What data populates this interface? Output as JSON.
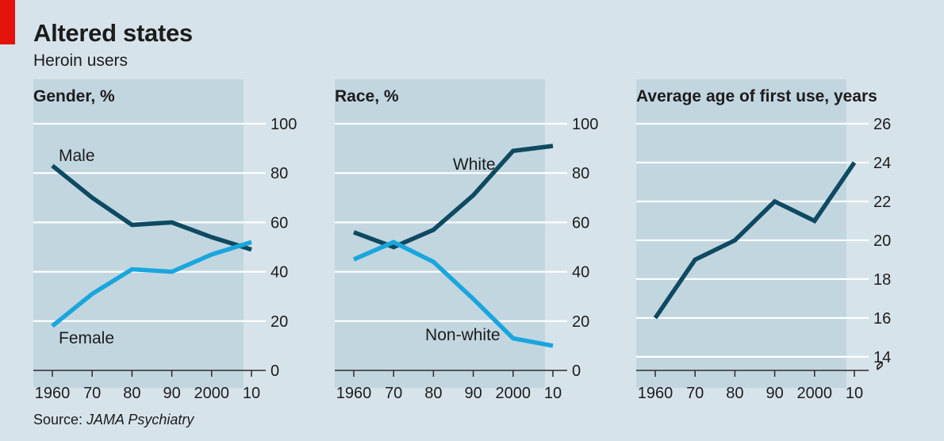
{
  "header": {
    "title": "Altered states",
    "subtitle": "Heroin users"
  },
  "footer": {
    "source_prefix": "Source: ",
    "source_name": "JAMA Psychiatry"
  },
  "colors": {
    "background": "#d7e3ea",
    "plot_background": "#c2d6e0",
    "dark_series": "#0e4a61",
    "light_series": "#1aa6dd",
    "accent": "#e3120b"
  },
  "chart_data": [
    {
      "type": "line",
      "title": "Gender, %",
      "x": [
        1960,
        1970,
        1980,
        1990,
        2000,
        2010
      ],
      "xtick_labels": [
        "1960",
        "70",
        "80",
        "90",
        "2000",
        "10"
      ],
      "ylim": [
        0,
        100
      ],
      "yticks": [
        0,
        20,
        40,
        60,
        80,
        100
      ],
      "grid": true,
      "series": [
        {
          "name": "Male",
          "values": [
            83,
            70,
            59,
            60,
            54,
            49
          ]
        },
        {
          "name": "Female",
          "values": [
            18,
            31,
            41,
            40,
            47,
            52
          ]
        }
      ]
    },
    {
      "type": "line",
      "title": "Race, %",
      "x": [
        1960,
        1970,
        1980,
        1990,
        2000,
        2010
      ],
      "xtick_labels": [
        "1960",
        "70",
        "80",
        "90",
        "2000",
        "10"
      ],
      "ylim": [
        0,
        100
      ],
      "yticks": [
        0,
        20,
        40,
        60,
        80,
        100
      ],
      "grid": true,
      "series": [
        {
          "name": "White",
          "values": [
            56,
            50,
            57,
            71,
            89,
            91
          ]
        },
        {
          "name": "Non-white",
          "values": [
            45,
            52,
            44,
            29,
            13,
            10
          ]
        }
      ]
    },
    {
      "type": "line",
      "title": "Average age of first use, years",
      "x": [
        1960,
        1970,
        1980,
        1990,
        2000,
        2010
      ],
      "xtick_labels": [
        "1960",
        "70",
        "80",
        "90",
        "2000",
        "10"
      ],
      "ylim": [
        13.3,
        26.3
      ],
      "yticks": [
        14,
        16,
        18,
        20,
        22,
        24,
        26
      ],
      "axis_break": true,
      "grid": true,
      "series": [
        {
          "values": [
            16,
            19,
            20,
            22,
            21,
            24
          ]
        }
      ]
    }
  ]
}
